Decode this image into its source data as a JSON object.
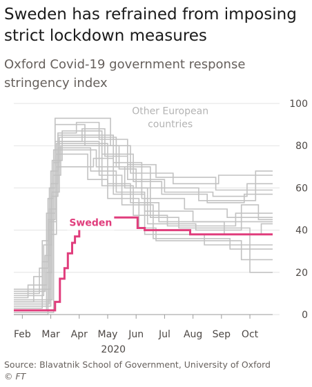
{
  "title": "Sweden has refrained from imposing strict lockdown measures",
  "subtitle": "Oxford Covid-19 government response stringency index",
  "source": "Source: Blavatnik School of Government, University of Oxford",
  "copyright": "© FT",
  "colors": {
    "sweden": "#e03d7c",
    "others": "#c2c2c2",
    "grid": "#e3e3e3",
    "text": "#4d4845"
  },
  "chart_data": {
    "type": "line",
    "title": "Sweden has refrained from imposing strict lockdown measures",
    "subtitle": "Oxford Covid-19 government response stringency index",
    "x_axis": {
      "unit": "month",
      "range": [
        0,
        9.1
      ],
      "ticks": [
        {
          "x": 0.3,
          "label": "Feb"
        },
        {
          "x": 1.3,
          "label": "Mar"
        },
        {
          "x": 2.3,
          "label": "Apr"
        },
        {
          "x": 3.3,
          "label": "May"
        },
        {
          "x": 4.3,
          "label": "Jun"
        },
        {
          "x": 5.3,
          "label": "Jul"
        },
        {
          "x": 6.3,
          "label": "Aug"
        },
        {
          "x": 7.3,
          "label": "Sep"
        },
        {
          "x": 8.3,
          "label": "Oct"
        }
      ],
      "year_label": "2020"
    },
    "y_axis": {
      "range": [
        0,
        100
      ],
      "ticks": [
        0,
        20,
        40,
        60,
        80,
        100
      ],
      "position": "right"
    },
    "grid": true,
    "annotations": [
      {
        "text": "Other European countries",
        "lines": [
          "Other European",
          "countries"
        ],
        "x": 5.5,
        "y": 95,
        "color": "#b3b3b3"
      },
      {
        "text": "Sweden",
        "x": 1.95,
        "y": 42,
        "color": "#e03d7c"
      }
    ],
    "series": [
      {
        "name": "Sweden",
        "color": "#e03d7c",
        "highlight": true,
        "points": [
          [
            0,
            2
          ],
          [
            1.45,
            2
          ],
          [
            1.45,
            6
          ],
          [
            1.62,
            6
          ],
          [
            1.62,
            17
          ],
          [
            1.78,
            17
          ],
          [
            1.78,
            22
          ],
          [
            1.9,
            22
          ],
          [
            1.9,
            29
          ],
          [
            2.05,
            29
          ],
          [
            2.05,
            34
          ],
          [
            2.15,
            34
          ],
          [
            2.15,
            37
          ],
          [
            2.3,
            37
          ],
          [
            2.3,
            41
          ],
          [
            2.5,
            41
          ],
          [
            2.5,
            46
          ],
          [
            4.35,
            46
          ],
          [
            4.35,
            41
          ],
          [
            4.6,
            41
          ],
          [
            4.6,
            40
          ],
          [
            6.2,
            40
          ],
          [
            6.2,
            38
          ],
          [
            9.1,
            38
          ]
        ]
      },
      {
        "name": "Other 1",
        "color": "#c2c2c2",
        "points": [
          [
            0,
            6
          ],
          [
            0.7,
            6
          ],
          [
            0.7,
            18
          ],
          [
            1.0,
            18
          ],
          [
            1.0,
            35
          ],
          [
            1.25,
            35
          ],
          [
            1.25,
            60
          ],
          [
            1.45,
            60
          ],
          [
            1.45,
            82
          ],
          [
            2.4,
            82
          ],
          [
            2.4,
            88
          ],
          [
            3.2,
            88
          ],
          [
            3.2,
            75
          ],
          [
            4.0,
            75
          ],
          [
            4.0,
            64
          ],
          [
            5.3,
            64
          ],
          [
            5.3,
            58
          ],
          [
            7.0,
            58
          ],
          [
            7.0,
            56
          ],
          [
            8.2,
            56
          ],
          [
            8.2,
            62
          ],
          [
            9.1,
            62
          ]
        ]
      },
      {
        "name": "Other 2",
        "color": "#c2c2c2",
        "points": [
          [
            0,
            11
          ],
          [
            1.1,
            11
          ],
          [
            1.1,
            28
          ],
          [
            1.3,
            28
          ],
          [
            1.3,
            68
          ],
          [
            1.55,
            68
          ],
          [
            1.55,
            85
          ],
          [
            3.5,
            85
          ],
          [
            3.5,
            72
          ],
          [
            4.5,
            72
          ],
          [
            4.5,
            55
          ],
          [
            6.0,
            55
          ],
          [
            6.0,
            50
          ],
          [
            7.5,
            50
          ],
          [
            7.5,
            46
          ],
          [
            9.1,
            46
          ]
        ]
      },
      {
        "name": "Other 3",
        "color": "#c2c2c2",
        "points": [
          [
            0,
            3
          ],
          [
            1.0,
            3
          ],
          [
            1.0,
            25
          ],
          [
            1.2,
            25
          ],
          [
            1.2,
            55
          ],
          [
            1.4,
            55
          ],
          [
            1.4,
            78
          ],
          [
            2.9,
            78
          ],
          [
            2.9,
            70
          ],
          [
            3.9,
            70
          ],
          [
            3.9,
            60
          ],
          [
            4.7,
            60
          ],
          [
            4.7,
            43
          ],
          [
            6.4,
            43
          ],
          [
            6.4,
            40
          ],
          [
            8.0,
            40
          ],
          [
            8.0,
            52
          ],
          [
            8.6,
            52
          ],
          [
            8.6,
            45
          ],
          [
            9.1,
            45
          ]
        ]
      },
      {
        "name": "Other 4",
        "color": "#c2c2c2",
        "points": [
          [
            0,
            8
          ],
          [
            0.5,
            8
          ],
          [
            0.5,
            14
          ],
          [
            1.15,
            14
          ],
          [
            1.15,
            48
          ],
          [
            1.45,
            48
          ],
          [
            1.45,
            93
          ],
          [
            3.4,
            93
          ],
          [
            3.4,
            80
          ],
          [
            4.1,
            80
          ],
          [
            4.1,
            67
          ],
          [
            5.6,
            67
          ],
          [
            5.6,
            62
          ],
          [
            7.2,
            62
          ],
          [
            7.2,
            66
          ],
          [
            9.1,
            66
          ]
        ]
      },
      {
        "name": "Other 5",
        "color": "#c2c2c2",
        "points": [
          [
            0,
            0
          ],
          [
            1.2,
            0
          ],
          [
            1.2,
            40
          ],
          [
            1.4,
            40
          ],
          [
            1.4,
            72
          ],
          [
            1.6,
            72
          ],
          [
            1.6,
            82
          ],
          [
            3.0,
            82
          ],
          [
            3.0,
            66
          ],
          [
            3.8,
            66
          ],
          [
            3.8,
            52
          ],
          [
            4.9,
            52
          ],
          [
            4.9,
            36
          ],
          [
            7.6,
            36
          ],
          [
            7.6,
            31
          ],
          [
            9.1,
            31
          ]
        ]
      },
      {
        "name": "Other 6",
        "color": "#c2c2c2",
        "points": [
          [
            0,
            4
          ],
          [
            1.3,
            4
          ],
          [
            1.3,
            62
          ],
          [
            1.55,
            62
          ],
          [
            1.55,
            79
          ],
          [
            2.7,
            79
          ],
          [
            2.7,
            68
          ],
          [
            3.6,
            68
          ],
          [
            3.6,
            58
          ],
          [
            4.6,
            58
          ],
          [
            4.6,
            49
          ],
          [
            6.3,
            49
          ],
          [
            6.3,
            44
          ],
          [
            9.1,
            44
          ]
        ]
      },
      {
        "name": "Other 7",
        "color": "#c2c2c2",
        "points": [
          [
            0,
            9
          ],
          [
            1.05,
            9
          ],
          [
            1.05,
            33
          ],
          [
            1.35,
            33
          ],
          [
            1.35,
            73
          ],
          [
            1.7,
            73
          ],
          [
            1.7,
            87
          ],
          [
            3.1,
            87
          ],
          [
            3.1,
            76
          ],
          [
            4.2,
            76
          ],
          [
            4.2,
            63
          ],
          [
            5.2,
            63
          ],
          [
            5.2,
            57
          ],
          [
            6.8,
            57
          ],
          [
            6.8,
            53
          ],
          [
            8.1,
            53
          ],
          [
            8.1,
            57
          ],
          [
            9.1,
            57
          ]
        ]
      },
      {
        "name": "Other 8",
        "color": "#c2c2c2",
        "points": [
          [
            0,
            5
          ],
          [
            1.25,
            5
          ],
          [
            1.25,
            50
          ],
          [
            1.5,
            50
          ],
          [
            1.5,
            76
          ],
          [
            2.6,
            76
          ],
          [
            2.6,
            64
          ],
          [
            3.3,
            64
          ],
          [
            3.3,
            55
          ],
          [
            4.4,
            55
          ],
          [
            4.4,
            41
          ],
          [
            5.0,
            41
          ],
          [
            5.0,
            35
          ],
          [
            8.0,
            35
          ],
          [
            8.0,
            26
          ],
          [
            9.1,
            26
          ]
        ]
      },
      {
        "name": "Other 9",
        "color": "#c2c2c2",
        "points": [
          [
            0,
            7
          ],
          [
            1.35,
            7
          ],
          [
            1.35,
            58
          ],
          [
            1.6,
            58
          ],
          [
            1.6,
            84
          ],
          [
            3.6,
            84
          ],
          [
            3.6,
            70
          ],
          [
            4.8,
            70
          ],
          [
            4.8,
            46
          ],
          [
            5.8,
            46
          ],
          [
            5.8,
            41
          ],
          [
            8.3,
            41
          ],
          [
            8.3,
            20
          ],
          [
            9.1,
            20
          ]
        ]
      },
      {
        "name": "Other 10",
        "color": "#c2c2c2",
        "points": [
          [
            0,
            10
          ],
          [
            0.9,
            10
          ],
          [
            0.9,
            22
          ],
          [
            1.2,
            22
          ],
          [
            1.2,
            45
          ],
          [
            1.45,
            45
          ],
          [
            1.45,
            90
          ],
          [
            2.5,
            90
          ],
          [
            2.5,
            80
          ],
          [
            3.7,
            80
          ],
          [
            3.7,
            69
          ],
          [
            4.3,
            69
          ],
          [
            4.3,
            60
          ],
          [
            6.5,
            60
          ],
          [
            6.5,
            54
          ],
          [
            8.5,
            54
          ],
          [
            8.5,
            68
          ],
          [
            9.1,
            68
          ]
        ]
      },
      {
        "name": "Other 11",
        "color": "#c2c2c2",
        "points": [
          [
            0,
            1
          ],
          [
            1.4,
            1
          ],
          [
            1.4,
            66
          ],
          [
            1.65,
            66
          ],
          [
            1.65,
            80
          ],
          [
            3.1,
            80
          ],
          [
            3.1,
            61
          ],
          [
            4.2,
            61
          ],
          [
            4.2,
            47
          ],
          [
            5.4,
            47
          ],
          [
            5.4,
            42
          ],
          [
            7.8,
            42
          ],
          [
            7.8,
            48
          ],
          [
            9.1,
            48
          ]
        ]
      },
      {
        "name": "Other 12",
        "color": "#c2c2c2",
        "points": [
          [
            0,
            12
          ],
          [
            1.3,
            12
          ],
          [
            1.3,
            38
          ],
          [
            1.5,
            38
          ],
          [
            1.5,
            70
          ],
          [
            2.8,
            70
          ],
          [
            2.8,
            74
          ],
          [
            3.5,
            74
          ],
          [
            3.5,
            57
          ],
          [
            4.6,
            57
          ],
          [
            4.6,
            38
          ],
          [
            6.7,
            38
          ],
          [
            6.7,
            33
          ],
          [
            9.1,
            33
          ]
        ]
      },
      {
        "name": "Other 13",
        "color": "#c2c2c2",
        "points": [
          [
            0,
            2
          ],
          [
            1.15,
            2
          ],
          [
            1.15,
            20
          ],
          [
            1.35,
            20
          ],
          [
            1.35,
            56
          ],
          [
            1.55,
            56
          ],
          [
            1.55,
            86
          ],
          [
            2.2,
            86
          ],
          [
            2.2,
            91
          ],
          [
            3.0,
            91
          ],
          [
            3.0,
            83
          ],
          [
            4.0,
            83
          ],
          [
            4.0,
            71
          ],
          [
            5.0,
            71
          ],
          [
            5.0,
            65
          ],
          [
            7.1,
            65
          ],
          [
            7.1,
            59
          ],
          [
            9.1,
            59
          ]
        ]
      },
      {
        "name": "Other 14",
        "color": "#c2c2c2",
        "points": [
          [
            0,
            6
          ],
          [
            1.25,
            6
          ],
          [
            1.25,
            44
          ],
          [
            1.5,
            44
          ],
          [
            1.5,
            81
          ],
          [
            3.3,
            81
          ],
          [
            3.3,
            62
          ],
          [
            4.1,
            62
          ],
          [
            4.1,
            53
          ],
          [
            5.1,
            53
          ],
          [
            5.1,
            44
          ],
          [
            7.4,
            44
          ],
          [
            7.4,
            38
          ],
          [
            8.7,
            38
          ],
          [
            8.7,
            43
          ],
          [
            9.1,
            43
          ]
        ]
      }
    ]
  }
}
